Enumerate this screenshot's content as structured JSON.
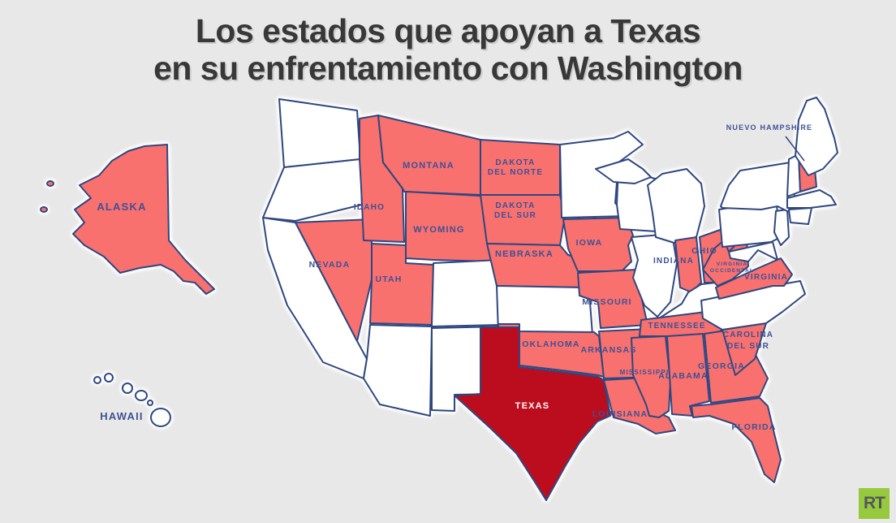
{
  "title": {
    "line1": "Los estados que apoyan a Texas",
    "line2": "en su enfrentamiento con Washington"
  },
  "branding": {
    "logo_text": "RT"
  },
  "map": {
    "colors": {
      "background": "#E9E8E9",
      "neutral_fill": "#FFFFFF",
      "support_fill": "#F8716F",
      "texas_fill": "#BC0D1E",
      "border": "#2F4780",
      "label": "#3E5195",
      "texas_label": "#FFFFFF",
      "logo_green": "#96C93D"
    },
    "legend_meaning": {
      "support": "Estados que apoyan a Texas",
      "texas": "Texas",
      "neutral": "Sin posicionamiento"
    },
    "states": [
      {
        "id": "alaska",
        "status": "support",
        "label_lines": [
          "ALASKA"
        ]
      },
      {
        "id": "hawaii",
        "status": "neutral",
        "label_lines": [
          "HAWAII"
        ]
      },
      {
        "id": "washington",
        "status": "neutral"
      },
      {
        "id": "oregon",
        "status": "neutral"
      },
      {
        "id": "california",
        "status": "neutral"
      },
      {
        "id": "nevada",
        "status": "support",
        "label_lines": [
          "NEVADA"
        ]
      },
      {
        "id": "idaho",
        "status": "support",
        "label_lines": [
          "IDAHO"
        ]
      },
      {
        "id": "montana",
        "status": "support",
        "label_lines": [
          "MONTANA"
        ]
      },
      {
        "id": "wyoming",
        "status": "support",
        "label_lines": [
          "WYOMING"
        ]
      },
      {
        "id": "utah",
        "status": "support",
        "label_lines": [
          "UTAH"
        ]
      },
      {
        "id": "arizona",
        "status": "neutral"
      },
      {
        "id": "colorado",
        "status": "neutral"
      },
      {
        "id": "nuevo-mexico",
        "status": "neutral"
      },
      {
        "id": "dakota-del-norte",
        "status": "support",
        "label_lines": [
          "DAKOTA",
          "DEL NORTE"
        ]
      },
      {
        "id": "dakota-del-sur",
        "status": "support",
        "label_lines": [
          "DAKOTA",
          "DEL SUR"
        ]
      },
      {
        "id": "nebraska",
        "status": "support",
        "label_lines": [
          "NEBRASKA"
        ]
      },
      {
        "id": "kansas",
        "status": "neutral"
      },
      {
        "id": "oklahoma",
        "status": "support",
        "label_lines": [
          "OKLAHOMA"
        ]
      },
      {
        "id": "texas",
        "status": "texas",
        "label_lines": [
          "TEXAS"
        ]
      },
      {
        "id": "minnesota",
        "status": "neutral"
      },
      {
        "id": "iowa",
        "status": "support",
        "label_lines": [
          "IOWA"
        ]
      },
      {
        "id": "missouri",
        "status": "support",
        "label_lines": [
          "MISSOURI"
        ]
      },
      {
        "id": "arkansas",
        "status": "support",
        "label_lines": [
          "ARKANSAS"
        ]
      },
      {
        "id": "louisiana",
        "status": "support",
        "label_lines": [
          "LOUISIANA"
        ]
      },
      {
        "id": "wisconsin",
        "status": "neutral"
      },
      {
        "id": "illinois",
        "status": "neutral"
      },
      {
        "id": "michigan-up",
        "status": "neutral"
      },
      {
        "id": "michigan",
        "status": "neutral"
      },
      {
        "id": "indiana",
        "status": "support",
        "label_lines": [
          "INDIANA"
        ]
      },
      {
        "id": "ohio",
        "status": "support",
        "label_lines": [
          "OHIO"
        ]
      },
      {
        "id": "kentucky",
        "status": "neutral"
      },
      {
        "id": "tennessee",
        "status": "support",
        "label_lines": [
          "TENNESSEE"
        ]
      },
      {
        "id": "mississippi",
        "status": "support",
        "label_lines": [
          "MISSISSIPPI"
        ]
      },
      {
        "id": "alabama",
        "status": "support",
        "label_lines": [
          "ALABAMA"
        ]
      },
      {
        "id": "georgia",
        "status": "support",
        "label_lines": [
          "GEORGIA"
        ]
      },
      {
        "id": "florida",
        "status": "support",
        "label_lines": [
          "FLORIDA"
        ]
      },
      {
        "id": "carolina-del-sur",
        "status": "support",
        "label_lines": [
          "CAROLINA",
          "DEL SUR"
        ]
      },
      {
        "id": "carolina-del-norte",
        "status": "neutral"
      },
      {
        "id": "virginia",
        "status": "support",
        "label_lines": [
          "VIRGINIA"
        ]
      },
      {
        "id": "virginia-occidental",
        "status": "support",
        "label_lines": [
          "VIRGINIA",
          "OCCIDENTAL"
        ]
      },
      {
        "id": "maryland-delaware",
        "status": "neutral"
      },
      {
        "id": "pennsylvania",
        "status": "neutral"
      },
      {
        "id": "nueva-jersey",
        "status": "neutral"
      },
      {
        "id": "nueva-york",
        "status": "neutral"
      },
      {
        "id": "connecticut-rhode-island",
        "status": "neutral"
      },
      {
        "id": "massachusetts",
        "status": "neutral"
      },
      {
        "id": "vermont",
        "status": "neutral"
      },
      {
        "id": "nuevo-hampshire",
        "status": "support",
        "label_lines": [
          "NUEVO HAMPSHIRE"
        ]
      },
      {
        "id": "maine",
        "status": "neutral"
      }
    ]
  }
}
